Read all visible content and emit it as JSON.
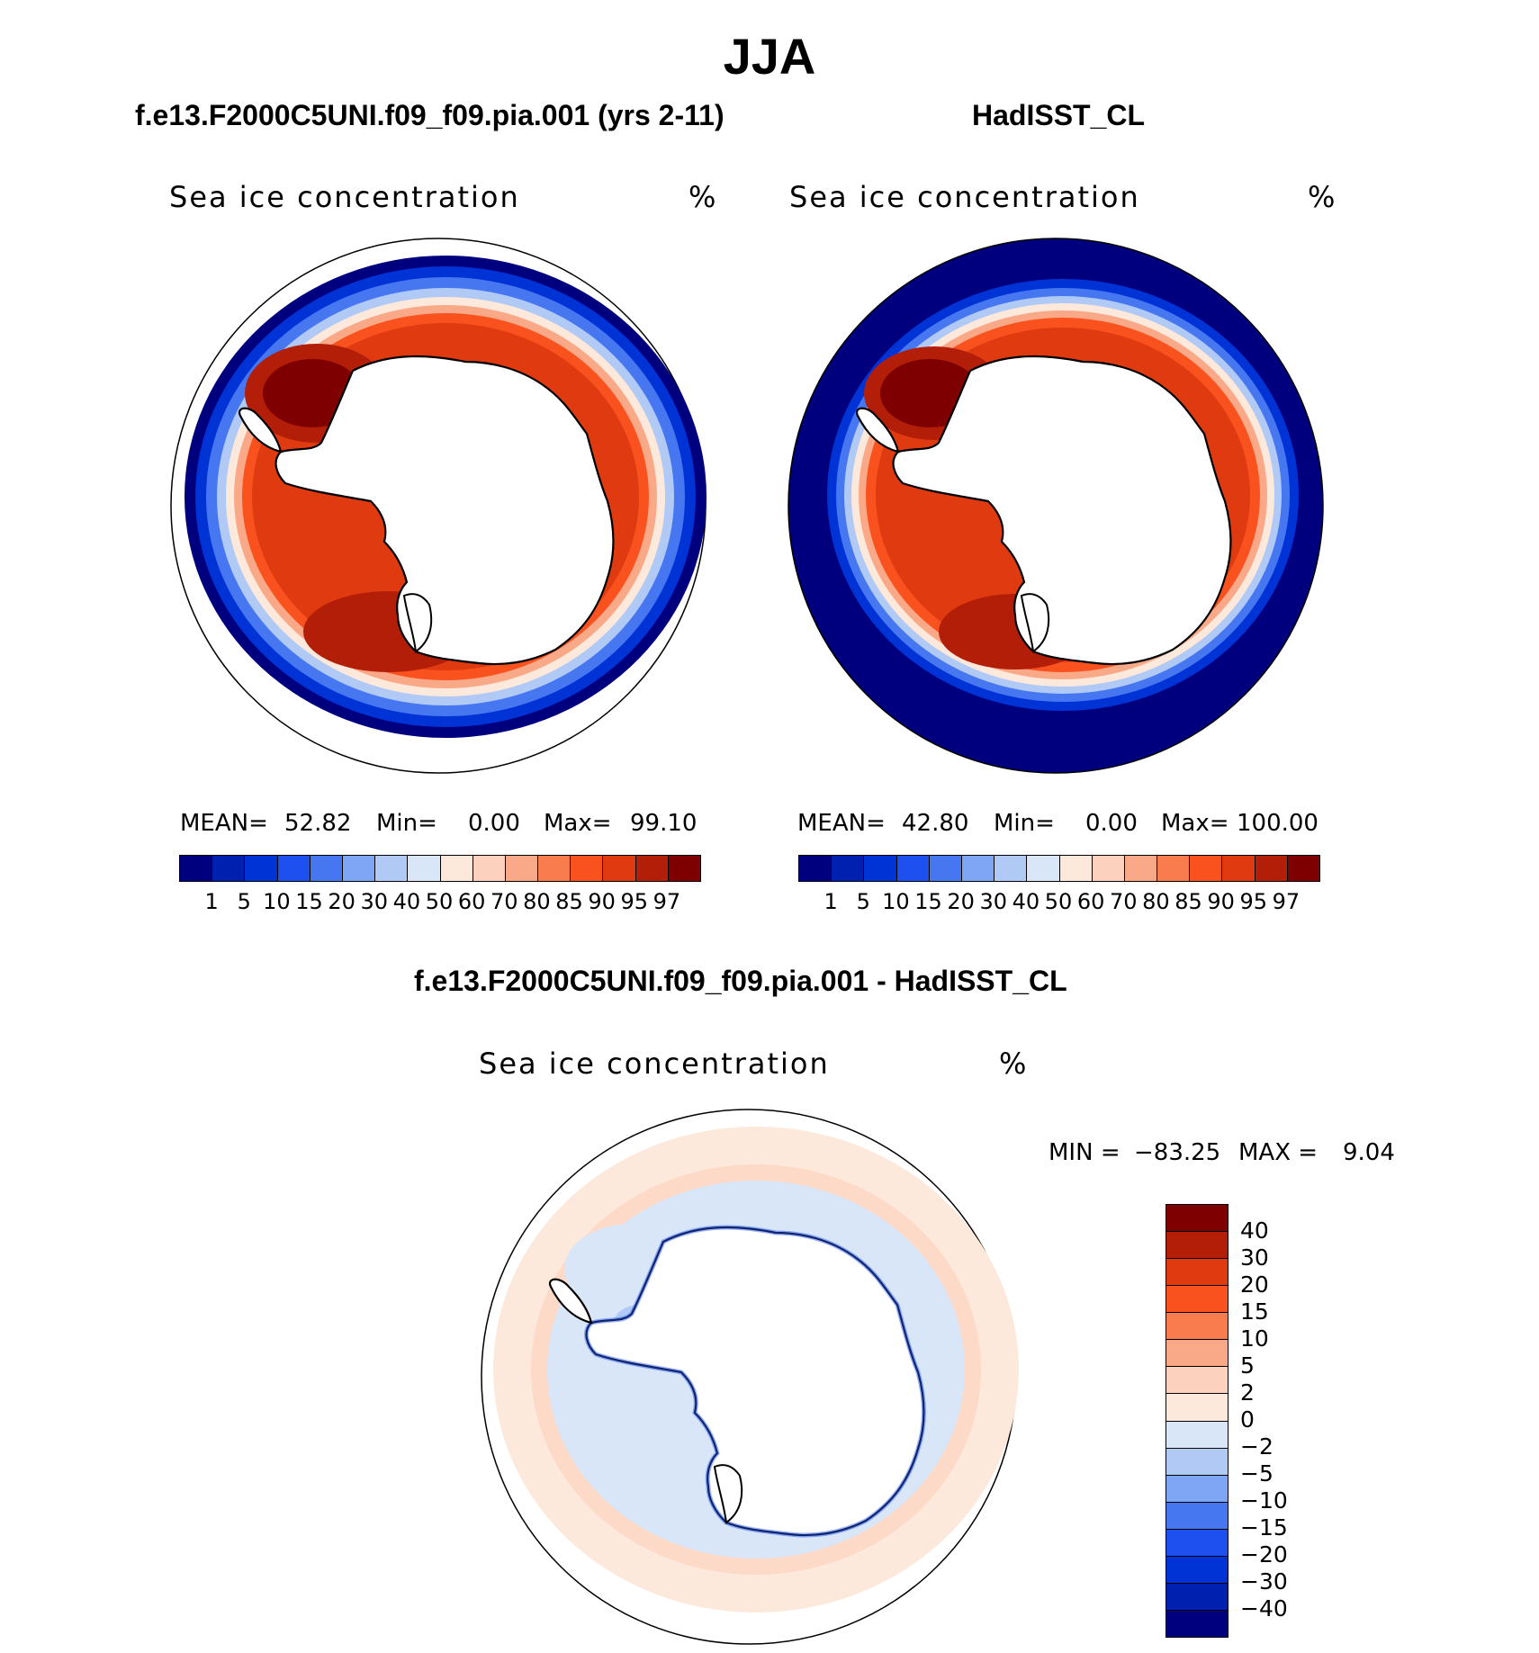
{
  "title": "JJA",
  "panels": [
    {
      "title": "f.e13.F2000C5UNI.f09_f09.pia.001 (yrs 2-11)",
      "variable": "Sea ice concentration",
      "units": "%",
      "mean_label": "MEAN=",
      "mean_value": "52.82",
      "min_label": "Min=",
      "min_value": "0.00",
      "max_label": "Max=",
      "max_value": "99.10"
    },
    {
      "title": "HadISST_CL",
      "variable": "Sea ice concentration",
      "units": "%",
      "mean_label": "MEAN=",
      "mean_value": "42.80",
      "min_label": "Min=",
      "min_value": "0.00",
      "max_label": "Max=",
      "max_value": "100.00"
    }
  ],
  "diff_panel": {
    "title": "f.e13.F2000C5UNI.f09_f09.pia.001 - HadISST_CL",
    "variable": "Sea ice concentration",
    "units": "%",
    "min_label": "MIN =",
    "min_value": "−83.25",
    "max_label": "MAX =",
    "max_value": "9.04"
  },
  "colorbar_abs": {
    "colors": [
      "#00007f",
      "#0020b0",
      "#0033d6",
      "#1e50f0",
      "#4677f0",
      "#7fa6f5",
      "#b0caf5",
      "#d8e6f8",
      "#fde9dc",
      "#fcd1bd",
      "#f9a987",
      "#f97c4f",
      "#f9521f",
      "#e03a10",
      "#b31e08",
      "#7f0000"
    ],
    "ticks": [
      "1",
      "5",
      "10",
      "15",
      "20",
      "30",
      "40",
      "50",
      "60",
      "70",
      "80",
      "85",
      "90",
      "95",
      "97"
    ]
  },
  "colorbar_diff": {
    "colors": [
      "#7f0000",
      "#b31e08",
      "#e03a10",
      "#f9521f",
      "#f97c4f",
      "#f9a987",
      "#fcd1bd",
      "#fde9dc",
      "#d8e6f8",
      "#b0caf5",
      "#7fa6f5",
      "#4677f0",
      "#1e50f0",
      "#0033d6",
      "#0020b0",
      "#00007f"
    ],
    "ticks": [
      "40",
      "30",
      "20",
      "15",
      "10",
      "5",
      "2",
      "0",
      "−2",
      "−5",
      "−10",
      "−15",
      "−20",
      "−30",
      "−40"
    ]
  }
}
